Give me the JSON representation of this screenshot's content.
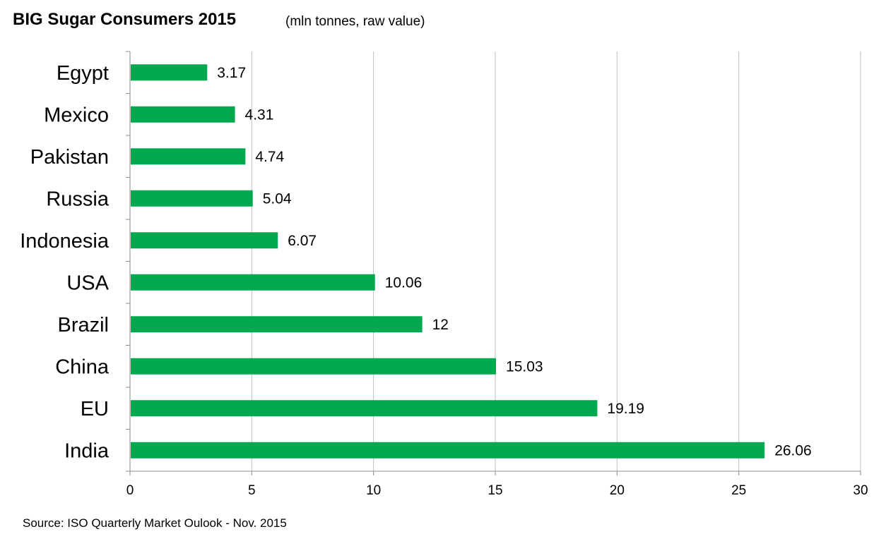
{
  "chart_data": {
    "type": "bar",
    "orientation": "horizontal",
    "title": "BIG Sugar Consumers 2015",
    "subtitle": "(mln tonnes, raw value)",
    "source": "Source: ISO Quarterly Market Oulook - Nov. 2015",
    "categories": [
      "Egypt",
      "Mexico",
      "Pakistan",
      "Russia",
      "Indonesia",
      "USA",
      "Brazil",
      "China",
      "EU",
      "India"
    ],
    "values": [
      3.17,
      4.31,
      4.74,
      5.04,
      6.07,
      10.06,
      12,
      15.03,
      19.19,
      26.06
    ],
    "value_labels": [
      "3.17",
      "4.31",
      "4.74",
      "5.04",
      "6.07",
      "10.06",
      "12",
      "15.03",
      "19.19",
      "26.06"
    ],
    "xlim": [
      0,
      30
    ],
    "x_ticks": [
      0,
      5,
      10,
      15,
      20,
      25,
      30
    ],
    "x_tick_labels": [
      "0",
      "5",
      "10",
      "15",
      "20",
      "25",
      "30"
    ],
    "xlabel": "",
    "ylabel": "",
    "grid": true,
    "legend": "none",
    "bar_color": "#00a84f",
    "grid_color": "#bfbfbf",
    "axis_color": "#8c8c8c"
  }
}
